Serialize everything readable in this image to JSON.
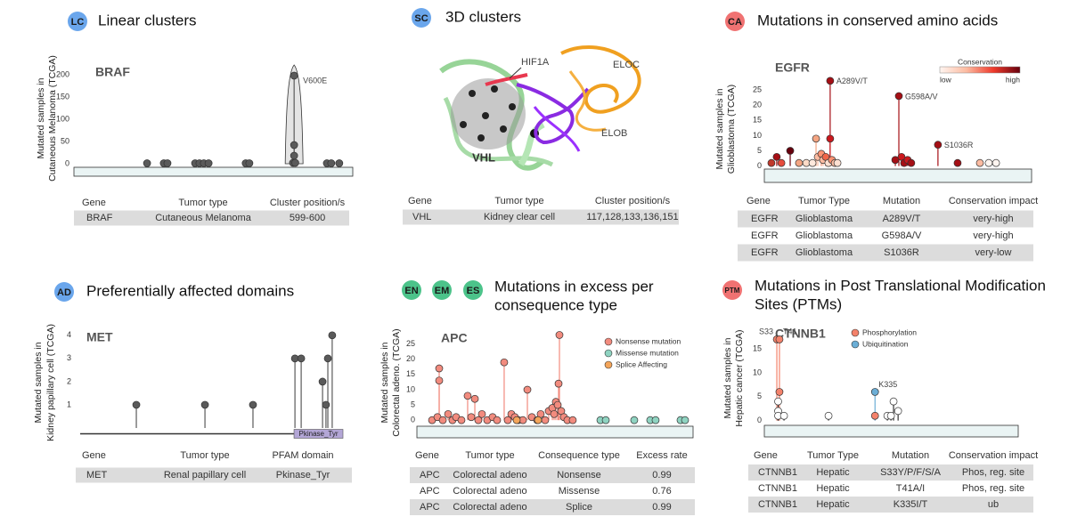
{
  "panels": [
    {
      "badges": [
        "LC"
      ],
      "badge_color": "#6aa6ec",
      "title": [
        "Linear clusters"
      ],
      "table": {
        "header": [
          "Gene",
          "Tumor type",
          "Cluster position/s"
        ],
        "rows": [
          [
            "BRAF",
            "Cutaneous Melanoma",
            "599-600"
          ]
        ]
      }
    },
    {
      "badges": [
        "SC"
      ],
      "badge_color": "#6aa6ec",
      "title": [
        "3D clusters"
      ],
      "table": {
        "header": [
          "Gene",
          "Tumor type",
          "Cluster position/s"
        ],
        "rows": [
          [
            "VHL",
            "Kidney clear cell",
            "117,128,133,136,151"
          ]
        ]
      }
    },
    {
      "badges": [
        "CA"
      ],
      "badge_color": "#f07272",
      "title": [
        "Mutations in conserved amino acids"
      ],
      "table": {
        "header": [
          "Gene",
          "Tumor Type",
          "Mutation",
          "Conservation impact"
        ],
        "rows": [
          [
            "EGFR",
            "Glioblastoma",
            "A289V/T",
            "very-high"
          ],
          [
            "EGFR",
            "Glioblastoma",
            "G598A/V",
            "very-high"
          ],
          [
            "EGFR",
            "Glioblastoma",
            "S1036R",
            "very-low"
          ]
        ]
      }
    },
    {
      "badges": [
        "AD"
      ],
      "badge_color": "#6aa6ec",
      "title": [
        "Preferentially affected domains"
      ],
      "table": {
        "header": [
          "Gene",
          "Tumor type",
          "PFAM domain"
        ],
        "rows": [
          [
            "MET",
            "Renal papillary cell",
            "Pkinase_Tyr"
          ]
        ]
      }
    },
    {
      "badges": [
        "EN",
        "EM",
        "ES"
      ],
      "badge_color": "#4cc38a",
      "title": [
        "Mutations in excess per",
        "consequence type"
      ],
      "table": {
        "header": [
          "Gene",
          "Tumor type",
          "Consequence type",
          "Excess rate"
        ],
        "rows": [
          [
            "APC",
            "Colorectal adeno",
            "Nonsense",
            0.99
          ],
          [
            "APC",
            "Colorectal adeno",
            "Missense",
            0.76
          ],
          [
            "APC",
            "Colorectal adeno",
            "Splice",
            0.99
          ]
        ]
      }
    },
    {
      "badges": [
        "PTM"
      ],
      "badge_color": "#f07272",
      "title": [
        "Mutations in Post Translational Modification",
        "Sites (PTMs)"
      ],
      "table": {
        "header": [
          "Gene",
          "Tumor Type",
          "Mutation",
          "Conservation impact"
        ],
        "rows": [
          [
            "CTNNB1",
            "Hepatic",
            "S33Y/P/F/S/A",
            "Phos, reg. site"
          ],
          [
            "CTNNB1",
            "Hepatic",
            "T41A/I",
            "Phos, reg. site"
          ],
          [
            "CTNNB1",
            "Hepatic",
            "K335I/T",
            "ub"
          ]
        ]
      }
    }
  ],
  "structure": {
    "labels": [
      "HIF1A",
      "ELOC",
      "ELOB",
      "VHL"
    ]
  },
  "chart_data": [
    {
      "type": "lollipop",
      "title": "BRAF",
      "ylabel": [
        "Mutated samples in",
        "Cutaneous Melanoma (TCGA)"
      ],
      "xlim": [
        0,
        766
      ],
      "ylim": [
        -8,
        230
      ],
      "yticks": [
        0,
        50,
        100,
        150,
        200
      ],
      "protein_color": "#eaf4f4",
      "series": [
        {
          "color": "#5a5a5a",
          "x": [
            196,
            242,
            252,
            328,
            340,
            352,
            365,
            467,
            477,
            600,
            600,
            600,
            597,
            603,
            690,
            702,
            724
          ],
          "values": [
            1,
            1,
            1,
            1,
            1,
            1,
            1,
            1,
            1,
            198,
            42,
            18,
            2,
            2,
            1,
            1,
            1
          ],
          "labels": [
            null,
            null,
            null,
            null,
            null,
            null,
            null,
            null,
            null,
            "V600E",
            null,
            null,
            null,
            null,
            null,
            null,
            null
          ]
        }
      ]
    },
    {
      "type": "lollipop",
      "title": "EGFR",
      "ylabel": [
        "Mutated samples in",
        "Glioblastoma (TCGA)"
      ],
      "xlim": [
        0,
        1210
      ],
      "ylim": [
        -1,
        30
      ],
      "yticks": [
        0,
        5,
        10,
        15,
        20,
        25
      ],
      "protein_color": "#eaf4f4",
      "colorbar": {
        "title": "Conservation",
        "low": "low",
        "high": "high",
        "colors": [
          "#fff5f0",
          "#fcbba1",
          "#ef3b2c",
          "#67000d"
        ]
      },
      "series": [
        {
          "x": [
            24,
            48,
            69,
            109,
            149,
            182,
            210,
            226,
            234,
            250,
            258,
            270,
            282,
            290,
            290,
            298,
            311,
            323,
            585,
            601,
            613,
            625,
            641,
            657,
            778,
            867,
            968,
            1008,
            1041
          ],
          "values": [
            1,
            3,
            1,
            5,
            1,
            1,
            1,
            9,
            3,
            4,
            2,
            3,
            1,
            28,
            9,
            2,
            1,
            1,
            2,
            23,
            3,
            1,
            2,
            1,
            7,
            1,
            1,
            1,
            1
          ],
          "colors": [
            "#c0392b",
            "#a50f15",
            "#e74c3c",
            "#67000d",
            "#f4a582",
            "#fddbc7",
            "#fee8dc",
            "#f4a582",
            "#fcbba1",
            "#fc9272",
            "#fcbba1",
            "#ef6548",
            "#fee0d2",
            "#a50f15",
            "#cb181d",
            "#fc9272",
            "#fcbba1",
            "#fee0d2",
            "#a50f15",
            "#a50f15",
            "#cb181d",
            "#a50f15",
            "#cb181d",
            "#a50f15",
            "#a50f15",
            "#a50f15",
            "#fcbba1",
            "#fff5f0",
            "#fff5f0"
          ],
          "labels": [
            null,
            null,
            null,
            null,
            null,
            null,
            null,
            null,
            null,
            null,
            null,
            null,
            null,
            "A289V/T",
            null,
            null,
            null,
            null,
            null,
            "G598A/V",
            null,
            null,
            null,
            null,
            "S1036R",
            null,
            null,
            null,
            null
          ]
        }
      ]
    },
    {
      "type": "lollipop",
      "title": "MET",
      "ylabel": [
        "Mutated samples in",
        "Kidney papillary cell (TCGA)"
      ],
      "xlim": [
        0,
        1390
      ],
      "ylim": [
        -0.25,
        4.3
      ],
      "yticks": [
        1,
        2,
        3,
        4
      ],
      "domains": [
        {
          "name": "Pkinase_Tyr",
          "start": 1131,
          "end": 1390,
          "color": "#b3a6d6"
        }
      ],
      "series": [
        {
          "color": "#5a5a5a",
          "x": [
            297,
            660,
            914,
            1136,
            1169,
            1282,
            1300,
            1310,
            1333
          ],
          "values": [
            1,
            1,
            1,
            3,
            3,
            2,
            1,
            3,
            4
          ]
        }
      ]
    },
    {
      "type": "lollipop",
      "title": "APC",
      "ylabel": [
        "Mutated samples in",
        "Colorectal adeno. (TCGA)"
      ],
      "xlim": [
        0,
        2843
      ],
      "ylim": [
        -2,
        29
      ],
      "yticks": [
        0,
        5,
        10,
        15,
        20,
        25
      ],
      "protein_color": "#eaf4f4",
      "series": [
        {
          "name": "Nonsense mutation",
          "color": "#f28b7e",
          "x": [
            138,
            193,
            211,
            211,
            248,
            303,
            348,
            385,
            440,
            504,
            541,
            578,
            614,
            651,
            706,
            761,
            807,
            880,
            917,
            954,
            990,
            1027,
            1073,
            1119,
            1165,
            1220,
            1256,
            1302,
            1339,
            1376,
            1394,
            1412,
            1431,
            1440,
            1449,
            1467,
            1495,
            1531,
            1586
          ],
          "values": [
            0,
            1,
            17,
            13,
            0,
            2,
            0,
            1,
            0,
            8,
            1,
            7,
            0,
            2,
            0,
            1,
            0,
            19,
            0,
            2,
            1,
            0,
            0,
            10,
            1,
            0,
            2,
            0,
            3,
            4,
            2,
            6,
            5,
            12,
            28,
            3,
            1,
            0,
            0
          ]
        },
        {
          "name": "Missense mutation",
          "color": "#8fd3c1",
          "x": [
            1871,
            1926,
            2219,
            2384,
            2439,
            2696,
            2742
          ],
          "values": [
            0,
            0,
            0,
            0,
            0,
            0,
            0
          ]
        },
        {
          "name": "Splice Affecting",
          "color": "#f4a55a",
          "x": [
            1009,
            1229
          ],
          "values": [
            0,
            0
          ]
        }
      ]
    },
    {
      "type": "lollipop",
      "title": "CTNNB1",
      "ylabel": [
        "Mutated samples in",
        "Hepatic cancer (TCGA)"
      ],
      "xlim": [
        0,
        781
      ],
      "ylim": [
        -1,
        18
      ],
      "yticks": [
        0,
        5,
        10,
        15
      ],
      "protein_color": "#eaf4f4",
      "series": [
        {
          "name": "Phosphorylation",
          "color": "#f4826b",
          "x": [
            33,
            41,
            41,
            335
          ],
          "values": [
            17,
            17,
            6,
            1
          ],
          "labels": [
            "S33",
            "T41",
            null,
            null
          ]
        },
        {
          "name": "Ubiquitination",
          "color": "#6baed6",
          "x": [
            335
          ],
          "values": [
            6
          ],
          "labels": [
            "K335"
          ]
        },
        {
          "color": "#ffffff",
          "x": [
            37,
            37,
            37,
            55,
            192,
            373,
            384,
            392,
            406
          ],
          "values": [
            4,
            2,
            1,
            1,
            1,
            1,
            1,
            4,
            2
          ]
        }
      ]
    }
  ]
}
